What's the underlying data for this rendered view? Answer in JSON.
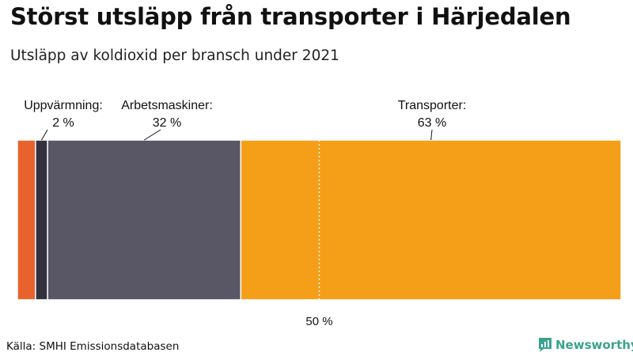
{
  "header": {
    "title": "Störst utsläpp från transporter i Härjedalen",
    "subtitle": "Utsläpp av koldioxid per bransch under 2021"
  },
  "chart_data": {
    "type": "bar",
    "orientation": "horizontal-stacked",
    "total": 100,
    "segments": [
      {
        "name": "Uppvärmning",
        "value": 3,
        "color": "#e8622d",
        "label": "",
        "value_label": ""
      },
      {
        "name": "Uppvärmning",
        "value": 2,
        "color": "#34323f",
        "label": "Uppvärmning:",
        "value_label": "2 %"
      },
      {
        "name": "Arbetsmaskiner",
        "value": 32,
        "color": "#595766",
        "label": "Arbetsmaskiner:",
        "value_label": "32 %"
      },
      {
        "name": "Transporter",
        "value": 63,
        "color": "#f59e18",
        "label": "Transporter:",
        "value_label": "63 %"
      }
    ],
    "reference_line": {
      "value": 50,
      "label": "50 %"
    }
  },
  "footer": {
    "source": "Källa: SMHI Emissionsdatabasen",
    "brand": "Newsworthy",
    "brand_color": "#3aa38f",
    "brand_icon": "newsworthy-logo-icon"
  }
}
